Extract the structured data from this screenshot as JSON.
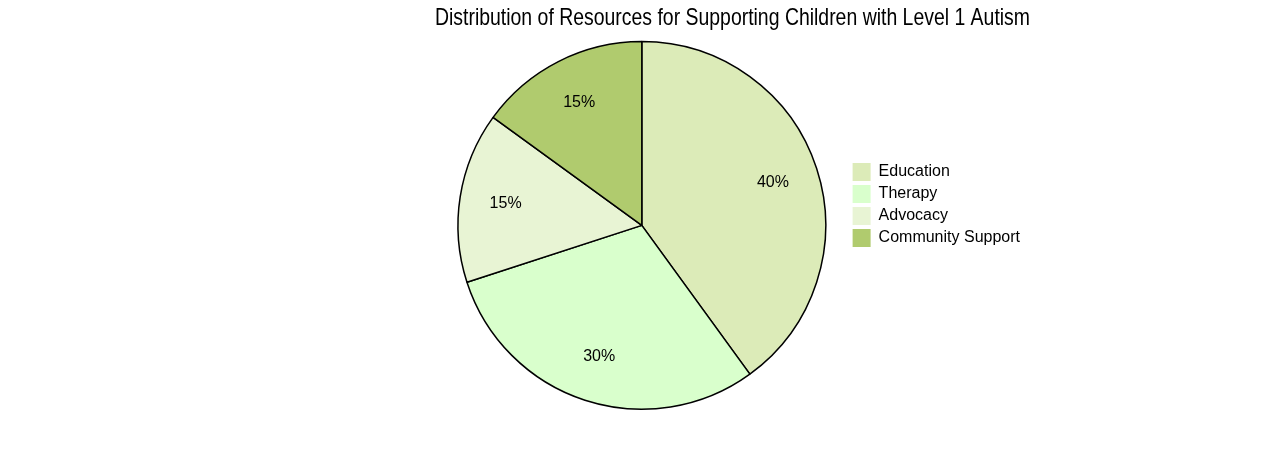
{
  "chart_data": {
    "type": "pie",
    "title": "Distribution of Resources for Supporting Children with Level 1 Autism",
    "categories": [
      "Education",
      "Therapy",
      "Advocacy",
      "Community Support"
    ],
    "values": [
      40,
      30,
      15,
      15
    ],
    "value_labels": [
      "40%",
      "30%",
      "15%",
      "15%"
    ],
    "colors": [
      "#dcebb8",
      "#d9ffcc",
      "#e8f4d4",
      "#b0cb6e"
    ],
    "data_labels": true,
    "legend": "right"
  }
}
